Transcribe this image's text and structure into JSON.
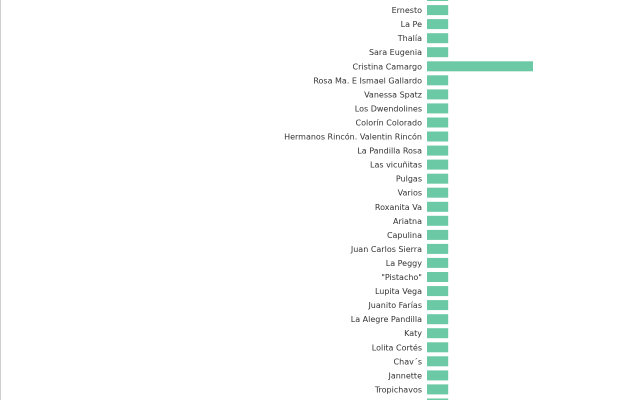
{
  "chart_data": {
    "type": "bar",
    "orientation": "horizontal",
    "bar_color": "#6cc9a6",
    "categories": [
      "",
      "Ernesto",
      "La Pe",
      "Thalía",
      "Sara Eugenia",
      "Cristina Camargo",
      "Rosa Ma. E Ismael Gallardo",
      "Vanessa Spatz",
      "Los Dwendolines",
      "Colorín Colorado",
      "Hermanos Rincón. Valentin Rincón",
      "La Pandilla Rosa",
      "Las vicuñitas",
      "Pulgas",
      "Varios",
      "Roxanita Va",
      "Ariatna",
      "Capulina",
      "Juan Carlos Sierra",
      "La Peggy",
      "\"Pistacho\"",
      "Lupita Vega",
      "Juanito Farías",
      "La Alegre Pandilla",
      "Katy",
      "Lolita Cortés",
      "Chav´s",
      "Jannette",
      "Tropichavos",
      ""
    ],
    "values": [
      1,
      1,
      1,
      1,
      1,
      5,
      1,
      1,
      1,
      1,
      1,
      1,
      1,
      1,
      1,
      1,
      1,
      1,
      1,
      1,
      1,
      1,
      1,
      1,
      1,
      1,
      1,
      1,
      1,
      1
    ],
    "xlim": [
      0,
      5
    ],
    "grid": false,
    "legend": "none"
  }
}
